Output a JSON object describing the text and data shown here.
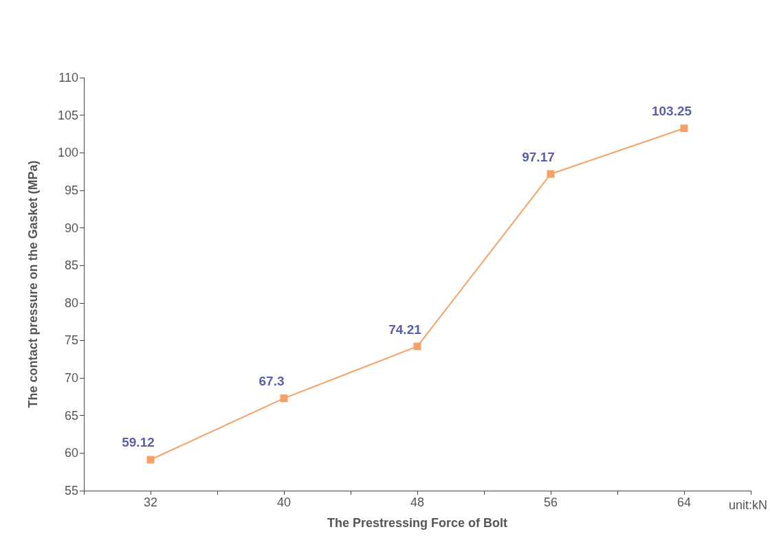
{
  "chart_data": {
    "type": "line",
    "xlabel": "The Prestressing Force of Bolt",
    "ylabel": "The contact pressure on the Gasket (MPa)",
    "x": [
      32,
      40,
      48,
      56,
      64
    ],
    "series": [
      {
        "color": "#f5a066",
        "values": [
          59.12,
          67.3,
          74.21,
          97.17,
          103.25
        ]
      }
    ],
    "xlim": [
      28,
      68
    ],
    "xticks": [
      {
        "value": 28,
        "label": null
      },
      32,
      {
        "value": 36,
        "label": null
      },
      40,
      {
        "value": 44,
        "label": null
      },
      48,
      {
        "value": 52,
        "label": null
      },
      56,
      {
        "value": 60,
        "label": null
      },
      64,
      {
        "value": 68,
        "label": null
      }
    ],
    "ylim": [
      55,
      110
    ],
    "yticks": [
      55,
      60,
      65,
      70,
      75,
      80,
      85,
      90,
      95,
      100,
      105,
      110
    ],
    "data_labels": true,
    "marker": "square",
    "line_style": "solid",
    "annotations": [
      "unit:kN"
    ]
  }
}
